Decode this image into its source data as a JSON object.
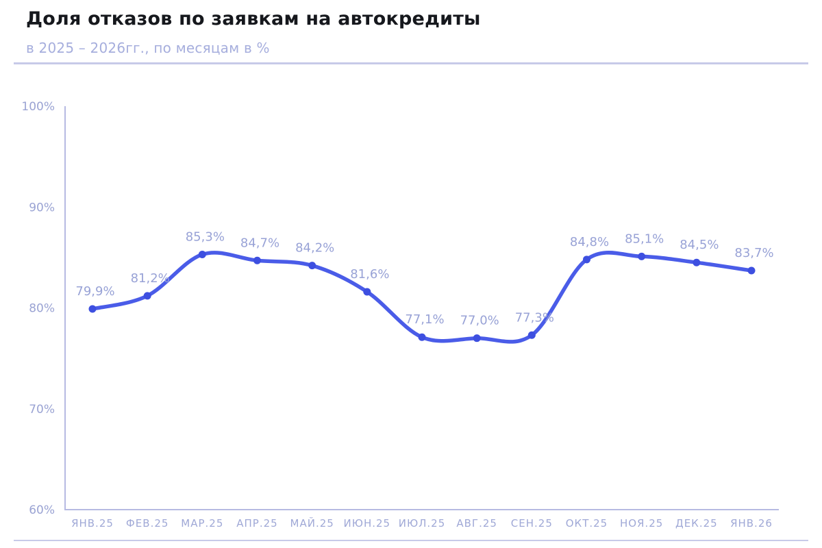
{
  "page": {
    "title": "Доля отказов по заявкам на автокредиты",
    "subtitle": "в 2025 – 2026гг., по месяцам в %"
  },
  "colors": {
    "title": "#16181d",
    "subtitle": "#a6aedd",
    "divider": "#c7cae8",
    "axis": "#b6bae2",
    "tick_label": "#9aa3d3",
    "x_label": "#9fa8d6",
    "data_label": "#98a2d6",
    "line": "#4a5ce8",
    "dot": "#3d4fe0",
    "background": "#ffffff"
  },
  "chart_data": {
    "type": "line",
    "title": "Доля отказов по заявкам на автокредиты",
    "subtitle": "в 2025 – 2026гг., по месяцам в %",
    "categories": [
      "ЯНВ.25",
      "ФЕВ.25",
      "МАР.25",
      "АПР.25",
      "МАЙ.25",
      "ИЮН.25",
      "ИЮЛ.25",
      "АВГ.25",
      "СЕН.25",
      "ОКТ.25",
      "НОЯ.25",
      "ДЕК.25",
      "ЯНВ.26"
    ],
    "values": [
      79.9,
      81.2,
      85.3,
      84.7,
      84.2,
      81.6,
      77.1,
      77.0,
      77.3,
      84.8,
      85.1,
      84.5,
      83.7
    ],
    "point_labels": [
      "79,9%",
      "81,2%",
      "85,3%",
      "84,7%",
      "84,2%",
      "81,6%",
      "77,1%",
      "77,0%",
      "77,3%",
      "84,8%",
      "85,1%",
      "84,5%",
      "83,7%"
    ],
    "xlabel": "",
    "ylabel": "",
    "ylim": [
      60,
      100
    ],
    "yticks": [
      60,
      70,
      80,
      90,
      100
    ],
    "ytick_labels": [
      "60%",
      "70%",
      "80%",
      "90%",
      "100%"
    ],
    "grid": false,
    "legend": "none",
    "smooth": true,
    "data_labels_shown": true
  }
}
